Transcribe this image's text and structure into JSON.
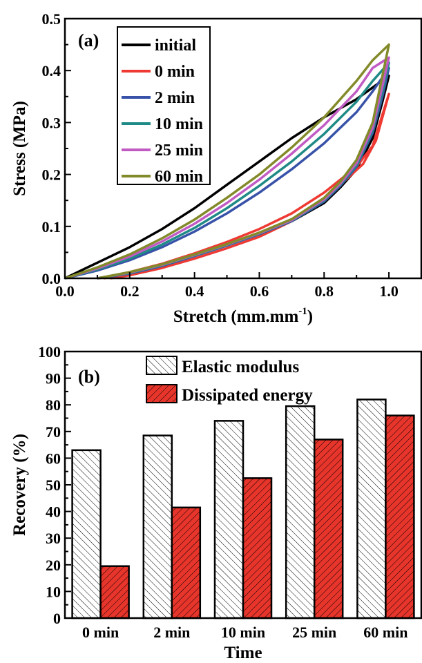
{
  "colors": {
    "initial": "#000000",
    "0 min": "#ee3a33",
    "2 min": "#3752a8",
    "10 min": "#1f8a86",
    "25 min": "#c15bc4",
    "60 min": "#838a2a",
    "bar_elastic": "#ffffff",
    "bar_dissipated": "#e8352b"
  },
  "chart_data": [
    {
      "type": "line",
      "panel_label": "(a)",
      "xlabel": "Stretch (mm.mm",
      "xlabel_sup": "-1",
      "xlabel_close": ")",
      "ylabel": "Stress (MPa)",
      "xlim": [
        0.0,
        1.1
      ],
      "ylim": [
        0.0,
        0.5
      ],
      "xticks": [
        "0.0",
        "0.2",
        "0.4",
        "0.6",
        "0.8",
        "1.0"
      ],
      "yticks": [
        "0.0",
        "0.1",
        "0.2",
        "0.3",
        "0.4",
        "0.5"
      ],
      "legend_position": "top-left",
      "series": [
        {
          "name": "initial",
          "peak": [
            1.0,
            0.39
          ],
          "loading": [
            [
              0,
              0
            ],
            [
              0.1,
              0.03
            ],
            [
              0.2,
              0.06
            ],
            [
              0.3,
              0.095
            ],
            [
              0.4,
              0.135
            ],
            [
              0.5,
              0.18
            ],
            [
              0.6,
              0.225
            ],
            [
              0.7,
              0.27
            ],
            [
              0.8,
              0.31
            ],
            [
              0.9,
              0.345
            ],
            [
              1.0,
              0.39
            ]
          ],
          "unloading": [
            [
              1.0,
              0.39
            ],
            [
              0.98,
              0.34
            ],
            [
              0.95,
              0.27
            ],
            [
              0.9,
              0.21
            ],
            [
              0.85,
              0.175
            ],
            [
              0.8,
              0.145
            ],
            [
              0.7,
              0.11
            ],
            [
              0.6,
              0.085
            ],
            [
              0.5,
              0.065
            ],
            [
              0.4,
              0.045
            ],
            [
              0.3,
              0.025
            ],
            [
              0.2,
              0.01
            ],
            [
              0.1,
              0
            ]
          ]
        },
        {
          "name": "0 min",
          "peak": [
            1.0,
            0.355
          ],
          "loading": [
            [
              0.12,
              0
            ],
            [
              0.2,
              0.012
            ],
            [
              0.3,
              0.028
            ],
            [
              0.4,
              0.048
            ],
            [
              0.5,
              0.07
            ],
            [
              0.6,
              0.095
            ],
            [
              0.7,
              0.125
            ],
            [
              0.8,
              0.165
            ],
            [
              0.9,
              0.215
            ],
            [
              0.95,
              0.255
            ],
            [
              1.0,
              0.355
            ]
          ],
          "unloading": [
            [
              1.0,
              0.355
            ],
            [
              0.98,
              0.31
            ],
            [
              0.96,
              0.265
            ],
            [
              0.92,
              0.22
            ],
            [
              0.85,
              0.18
            ],
            [
              0.8,
              0.15
            ],
            [
              0.7,
              0.11
            ],
            [
              0.6,
              0.08
            ],
            [
              0.5,
              0.058
            ],
            [
              0.4,
              0.038
            ],
            [
              0.3,
              0.02
            ],
            [
              0.2,
              0.006
            ],
            [
              0.14,
              0
            ]
          ]
        },
        {
          "name": "2 min",
          "peak": [
            1.0,
            0.405
          ],
          "loading": [
            [
              0,
              0
            ],
            [
              0.1,
              0.015
            ],
            [
              0.2,
              0.035
            ],
            [
              0.3,
              0.06
            ],
            [
              0.4,
              0.09
            ],
            [
              0.5,
              0.125
            ],
            [
              0.6,
              0.165
            ],
            [
              0.7,
              0.21
            ],
            [
              0.8,
              0.26
            ],
            [
              0.9,
              0.32
            ],
            [
              0.95,
              0.36
            ],
            [
              1.0,
              0.405
            ]
          ],
          "unloading": [
            [
              1.0,
              0.405
            ],
            [
              0.98,
              0.35
            ],
            [
              0.95,
              0.28
            ],
            [
              0.9,
              0.215
            ],
            [
              0.85,
              0.178
            ],
            [
              0.8,
              0.148
            ],
            [
              0.7,
              0.11
            ],
            [
              0.6,
              0.085
            ],
            [
              0.5,
              0.063
            ],
            [
              0.4,
              0.043
            ],
            [
              0.3,
              0.024
            ],
            [
              0.2,
              0.009
            ],
            [
              0.1,
              0
            ]
          ]
        },
        {
          "name": "10 min",
          "peak": [
            1.0,
            0.415
          ],
          "loading": [
            [
              0,
              0
            ],
            [
              0.1,
              0.017
            ],
            [
              0.2,
              0.038
            ],
            [
              0.3,
              0.065
            ],
            [
              0.4,
              0.097
            ],
            [
              0.5,
              0.135
            ],
            [
              0.6,
              0.178
            ],
            [
              0.7,
              0.225
            ],
            [
              0.8,
              0.278
            ],
            [
              0.9,
              0.34
            ],
            [
              0.95,
              0.38
            ],
            [
              1.0,
              0.415
            ]
          ],
          "unloading": [
            [
              1.0,
              0.415
            ],
            [
              0.98,
              0.36
            ],
            [
              0.95,
              0.285
            ],
            [
              0.9,
              0.218
            ],
            [
              0.85,
              0.18
            ],
            [
              0.8,
              0.15
            ],
            [
              0.7,
              0.111
            ],
            [
              0.6,
              0.086
            ],
            [
              0.5,
              0.064
            ],
            [
              0.4,
              0.044
            ],
            [
              0.3,
              0.025
            ],
            [
              0.2,
              0.01
            ],
            [
              0.1,
              0
            ]
          ]
        },
        {
          "name": "25 min",
          "peak": [
            1.0,
            0.425
          ],
          "loading": [
            [
              0,
              0
            ],
            [
              0.1,
              0.019
            ],
            [
              0.2,
              0.042
            ],
            [
              0.3,
              0.071
            ],
            [
              0.4,
              0.105
            ],
            [
              0.5,
              0.145
            ],
            [
              0.6,
              0.19
            ],
            [
              0.7,
              0.24
            ],
            [
              0.8,
              0.295
            ],
            [
              0.9,
              0.36
            ],
            [
              0.95,
              0.405
            ],
            [
              1.0,
              0.425
            ]
          ],
          "unloading": [
            [
              1.0,
              0.425
            ],
            [
              0.98,
              0.37
            ],
            [
              0.95,
              0.29
            ],
            [
              0.9,
              0.222
            ],
            [
              0.85,
              0.182
            ],
            [
              0.8,
              0.152
            ],
            [
              0.7,
              0.112
            ],
            [
              0.6,
              0.087
            ],
            [
              0.5,
              0.065
            ],
            [
              0.4,
              0.045
            ],
            [
              0.3,
              0.026
            ],
            [
              0.2,
              0.011
            ],
            [
              0.1,
              0
            ]
          ]
        },
        {
          "name": "60 min",
          "peak": [
            1.0,
            0.45
          ],
          "loading": [
            [
              0,
              0
            ],
            [
              0.1,
              0.021
            ],
            [
              0.2,
              0.046
            ],
            [
              0.3,
              0.077
            ],
            [
              0.4,
              0.113
            ],
            [
              0.5,
              0.155
            ],
            [
              0.6,
              0.2
            ],
            [
              0.7,
              0.252
            ],
            [
              0.8,
              0.31
            ],
            [
              0.9,
              0.38
            ],
            [
              0.95,
              0.42
            ],
            [
              1.0,
              0.45
            ]
          ],
          "unloading": [
            [
              1.0,
              0.45
            ],
            [
              0.98,
              0.39
            ],
            [
              0.95,
              0.3
            ],
            [
              0.9,
              0.228
            ],
            [
              0.85,
              0.186
            ],
            [
              0.8,
              0.155
            ],
            [
              0.7,
              0.114
            ],
            [
              0.6,
              0.088
            ],
            [
              0.5,
              0.066
            ],
            [
              0.4,
              0.046
            ],
            [
              0.3,
              0.027
            ],
            [
              0.2,
              0.012
            ],
            [
              0.1,
              0
            ]
          ]
        }
      ]
    },
    {
      "type": "bar",
      "panel_label": "(b)",
      "xlabel": "Time",
      "ylabel": "Recovery (%)",
      "ylim": [
        0,
        100
      ],
      "yticks": [
        "0",
        "10",
        "20",
        "30",
        "40",
        "50",
        "60",
        "70",
        "80",
        "90",
        "100"
      ],
      "legend_position": "top-right",
      "categories": [
        "0 min",
        "2 min",
        "10 min",
        "25 min",
        "60 min"
      ],
      "series": [
        {
          "name": "Elastic modulus",
          "values": [
            63,
            68.5,
            74,
            79.5,
            82
          ]
        },
        {
          "name": "Dissipated energy",
          "values": [
            19.5,
            41.5,
            52.5,
            67,
            76
          ]
        }
      ]
    }
  ]
}
